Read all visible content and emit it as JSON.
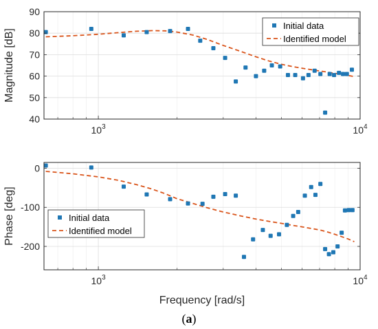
{
  "colors": {
    "data": "#1f77b4",
    "model": "#d95319"
  },
  "caption": {
    "prefix": "(",
    "letter": "a",
    "suffix": ")"
  },
  "chart_data": [
    {
      "type": "scatter",
      "panel": "magnitude",
      "xscale": "log",
      "xlim": [
        620,
        10000
      ],
      "ylim": [
        40,
        90
      ],
      "xlabel": "",
      "ylabel": "Magnitude [dB]",
      "yticks": [
        40,
        50,
        60,
        70,
        80,
        90
      ],
      "xticks": [
        {
          "v": 1000,
          "base": "10",
          "exp": "3"
        },
        {
          "v": 10000,
          "base": "10",
          "exp": "4"
        }
      ],
      "grid": true,
      "legend": {
        "placement": "top-right",
        "entries": [
          "Initial data",
          "Identified model"
        ]
      },
      "series": [
        {
          "name": "Initial data",
          "kind": "markers",
          "x": [
            630,
            940,
            1250,
            1530,
            1880,
            2200,
            2450,
            2750,
            3050,
            3350,
            3650,
            4000,
            4300,
            4600,
            4950,
            5300,
            5650,
            6050,
            6350,
            6700,
            7050,
            7350,
            7650,
            7950,
            8300,
            8600,
            8900,
            9300
          ],
          "y": [
            80.5,
            82,
            79,
            80.5,
            81,
            82,
            76.5,
            73,
            68.5,
            57.5,
            64,
            60,
            62.5,
            65,
            64.5,
            60.5,
            60.5,
            59,
            60.5,
            62.5,
            61,
            43,
            61,
            60.5,
            61.5,
            61,
            61,
            63
          ]
        },
        {
          "name": "Identified model",
          "kind": "dashed-line",
          "x": [
            630,
            800,
            1000,
            1200,
            1400,
            1600,
            1800,
            2000,
            2300,
            2600,
            3000,
            3500,
            4000,
            4500,
            5000,
            5500,
            6000,
            6500,
            7000,
            7500,
            8000,
            8500,
            9000,
            9500
          ],
          "y": [
            78.3,
            78.8,
            79.5,
            80.3,
            80.9,
            81.2,
            81.1,
            80.5,
            79.1,
            77.1,
            74.3,
            71.5,
            69.0,
            67.0,
            65.5,
            64.5,
            63.7,
            63.0,
            62.4,
            61.9,
            61.3,
            60.8,
            60.3,
            59.8
          ]
        }
      ]
    },
    {
      "type": "scatter",
      "panel": "phase",
      "xscale": "log",
      "xlim": [
        620,
        10000
      ],
      "ylim": [
        -260,
        15
      ],
      "xlabel": "Frequency [rad/s]",
      "ylabel": "Phase [deg]",
      "yticks": [
        0,
        -100,
        -200
      ],
      "xticks": [
        {
          "v": 1000,
          "base": "10",
          "exp": "3"
        },
        {
          "v": 10000,
          "base": "10",
          "exp": "4"
        }
      ],
      "grid": true,
      "legend": {
        "placement": "middle-left",
        "entries": [
          "Initial data",
          "Identified model"
        ]
      },
      "series": [
        {
          "name": "Initial data",
          "kind": "markers",
          "x": [
            630,
            940,
            1250,
            1530,
            1880,
            2200,
            2500,
            2750,
            3050,
            3350,
            3600,
            3900,
            4250,
            4550,
            4900,
            5250,
            5550,
            5800,
            6150,
            6500,
            6750,
            7050,
            7350,
            7600,
            7900,
            8200,
            8500,
            8750,
            9050,
            9350
          ],
          "y": [
            7,
            2,
            -47,
            -67,
            -79,
            -90,
            -91,
            -73,
            -66,
            -70,
            -227,
            -182,
            -158,
            -173,
            -169,
            -145,
            -122,
            -112,
            -70,
            -48,
            -68,
            -40,
            -207,
            -220,
            -215,
            -200,
            -165,
            -108,
            -107,
            -107
          ]
        },
        {
          "name": "Identified model",
          "kind": "dashed-line",
          "x": [
            630,
            800,
            1000,
            1200,
            1400,
            1600,
            1800,
            2000,
            2300,
            2600,
            3000,
            3500,
            4000,
            4500,
            5000,
            5500,
            6000,
            6500,
            7000,
            7500,
            8000,
            8500,
            9000,
            9500
          ],
          "y": [
            -8,
            -14,
            -22,
            -31,
            -42,
            -53,
            -65,
            -78,
            -90,
            -101,
            -112,
            -122,
            -130,
            -136,
            -141,
            -146,
            -150,
            -154,
            -158,
            -163,
            -169,
            -175,
            -181,
            -188
          ]
        }
      ]
    }
  ]
}
